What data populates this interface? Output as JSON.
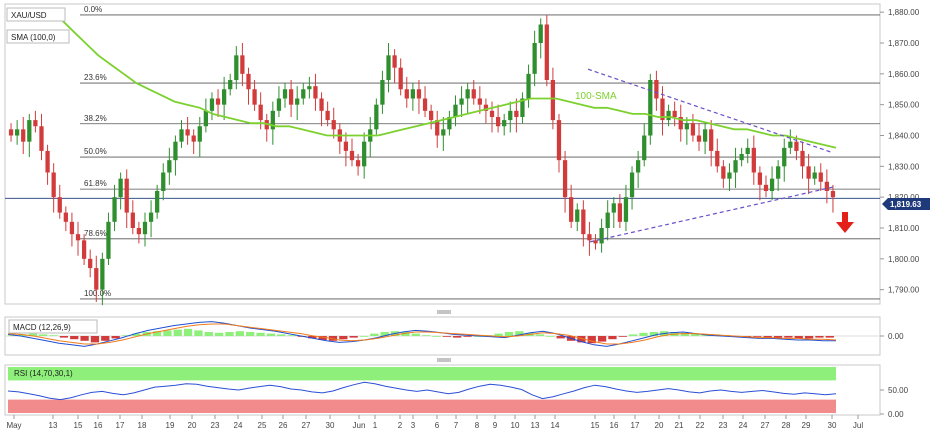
{
  "symbol": "XAU/USD",
  "sma_label": "SMA (100,0)",
  "sma_annotation": "100-SMA",
  "macd_label": "MACD (12,26,9)",
  "rsi_label": "RSI (14,70,30,1)",
  "last_price": "1,819.63",
  "colors": {
    "up": "#2f8f2f",
    "down": "#d23b3b",
    "sma": "#7cd12e",
    "trendline": "#6a4fc7",
    "macd_line": "#1f4fd1",
    "signal_line": "#f07a1b",
    "rsi_line": "#2b4fd6",
    "overbought_band": "#8ef07a",
    "oversold_band": "#f28b8b",
    "price_tag": "#1e3a7a",
    "arrow": "#e32119"
  },
  "chart_data": [
    {
      "type": "candlestick",
      "title": "XAU/USD",
      "ylim": [
        1786,
        1882
      ],
      "y_ticks": [
        "1,880.00",
        "1,870.00",
        "1,860.00",
        "1,850.00",
        "1,840.00",
        "1,830.00",
        "1,820.00",
        "1,810.00",
        "1,800.00",
        "1,790.00"
      ],
      "y_tick_values": [
        1880,
        1870,
        1860,
        1850,
        1840,
        1830,
        1820,
        1810,
        1800,
        1790
      ],
      "x_ticks": [
        "May",
        "13",
        "15",
        "16",
        "17",
        "18",
        "19",
        "20",
        "23",
        "24",
        "25",
        "26",
        "27",
        "30",
        "Jun",
        "1",
        "2",
        "3",
        "6",
        "7",
        "8",
        "9",
        "10",
        "13",
        "14",
        "15",
        "16",
        "17",
        "20",
        "21",
        "22",
        "23",
        "24",
        "27",
        "28",
        "29",
        "30",
        "Jul"
      ],
      "fibonacci_levels": [
        {
          "label": "0.0%",
          "value": 1879.1
        },
        {
          "label": "23.6%",
          "value": 1857.0
        },
        {
          "label": "38.2%",
          "value": 1843.8
        },
        {
          "label": "50.0%",
          "value": 1833.0
        },
        {
          "label": "61.8%",
          "value": 1822.6
        },
        {
          "label": "78.6%",
          "value": 1806.5
        },
        {
          "label": "100.0%",
          "value": 1787.0
        }
      ],
      "last_price": 1819.63,
      "close_series": [
        1840,
        1842,
        1838,
        1845,
        1843,
        1835,
        1828,
        1820,
        1815,
        1812,
        1808,
        1806,
        1800,
        1797,
        1790,
        1800,
        1812,
        1820,
        1826,
        1815,
        1810,
        1808,
        1812,
        1815,
        1822,
        1828,
        1832,
        1838,
        1842,
        1840,
        1838,
        1843,
        1848,
        1852,
        1850,
        1855,
        1858,
        1866,
        1860,
        1855,
        1850,
        1845,
        1842,
        1848,
        1852,
        1855,
        1850,
        1852,
        1855,
        1856,
        1852,
        1848,
        1845,
        1842,
        1838,
        1835,
        1832,
        1830,
        1838,
        1842,
        1850,
        1858,
        1866,
        1862,
        1855,
        1852,
        1855,
        1852,
        1848,
        1845,
        1840,
        1842,
        1846,
        1850,
        1852,
        1855,
        1852,
        1850,
        1848,
        1846,
        1843,
        1845,
        1848,
        1846,
        1852,
        1860,
        1870,
        1876,
        1858,
        1845,
        1832,
        1820,
        1812,
        1816,
        1808,
        1806,
        1805,
        1810,
        1815,
        1818,
        1812,
        1820,
        1828,
        1832,
        1840,
        1858,
        1852,
        1845,
        1848,
        1846,
        1842,
        1844,
        1840,
        1838,
        1842,
        1835,
        1830,
        1826,
        1828,
        1832,
        1834,
        1836,
        1828,
        1824,
        1822,
        1826,
        1830,
        1836,
        1838,
        1835,
        1830,
        1826,
        1828,
        1825,
        1822,
        1820
      ],
      "sma_series": [
        1878,
        1874,
        1870,
        1866,
        1863,
        1860,
        1857,
        1855,
        1853,
        1851,
        1850,
        1849,
        1847,
        1846,
        1845,
        1844,
        1844,
        1843,
        1843,
        1842,
        1841,
        1840,
        1840,
        1840,
        1840,
        1840,
        1841,
        1842,
        1843,
        1844,
        1845,
        1846,
        1847,
        1848,
        1849,
        1850,
        1851,
        1852,
        1852,
        1852,
        1851,
        1850,
        1849,
        1849,
        1848,
        1847,
        1847,
        1846,
        1846,
        1845,
        1845,
        1844,
        1843,
        1842,
        1842,
        1841,
        1840,
        1840,
        1839,
        1838,
        1837,
        1836
      ],
      "resistance_line": {
        "from": [
          1861.5,
          "2022-06-13"
        ],
        "to": [
          1834.5,
          "2022-06-29"
        ]
      },
      "support_line": {
        "from": [
          1805.5,
          "2022-06-14"
        ],
        "to": [
          1823.5,
          "2022-06-29"
        ]
      }
    },
    {
      "type": "bar",
      "title": "MACD (12,26,9)",
      "y_ticks": [
        "0.00"
      ],
      "y_tick_values": [
        0
      ],
      "histogram": [
        0.1,
        0.2,
        0.3,
        0.2,
        0.1,
        -0.2,
        -0.4,
        -0.6,
        -0.8,
        -0.6,
        -0.3,
        0.1,
        0.3,
        0.5,
        0.6,
        0.7,
        0.8,
        0.9,
        0.7,
        0.5,
        0.4,
        0.5,
        0.6,
        0.5,
        0.4,
        0.3,
        0.2,
        0.1,
        -0.1,
        -0.3,
        -0.5,
        -0.6,
        -0.4,
        -0.2,
        0.0,
        0.3,
        0.5,
        0.6,
        0.5,
        0.3,
        0.1,
        0.0,
        -0.1,
        -0.2,
        -0.1,
        0.0,
        0.1,
        0.3,
        0.5,
        0.6,
        0.4,
        0.2,
        0.0,
        -0.3,
        -0.6,
        -0.8,
        -0.9,
        -0.7,
        -0.4,
        -0.1,
        0.2,
        0.4,
        0.5,
        0.6,
        0.5,
        0.4,
        0.3,
        0.2,
        0.2,
        0.1,
        0.0,
        -0.1,
        -0.1,
        -0.2,
        -0.2,
        -0.2,
        -0.3,
        -0.3,
        -0.2,
        -0.2
      ],
      "macd_line": [
        0.2,
        0.0,
        -0.3,
        -0.6,
        -0.9,
        -1.1,
        -1.3,
        -1.0,
        -0.6,
        -0.2,
        0.3,
        0.7,
        1.0,
        1.3,
        1.5,
        1.7,
        1.8,
        1.6,
        1.3,
        1.0,
        0.8,
        0.6,
        0.3,
        0.0,
        -0.3,
        -0.6,
        -0.8,
        -0.7,
        -0.5,
        -0.2,
        0.2,
        0.5,
        0.7,
        0.6,
        0.4,
        0.2,
        0.1,
        0.0,
        -0.1,
        -0.2,
        0.1,
        0.4,
        0.6,
        0.3,
        -0.2,
        -0.7,
        -1.1,
        -1.3,
        -1.0,
        -0.6,
        -0.2,
        0.2,
        0.4,
        0.5,
        0.3,
        0.1,
        0.0,
        -0.1,
        -0.2,
        -0.3,
        -0.3,
        -0.4,
        -0.5,
        -0.5,
        -0.6,
        -0.6
      ],
      "signal_line": [
        0.3,
        0.2,
        0.0,
        -0.3,
        -0.6,
        -0.8,
        -1.0,
        -1.0,
        -0.8,
        -0.5,
        -0.1,
        0.3,
        0.6,
        0.9,
        1.2,
        1.4,
        1.5,
        1.5,
        1.3,
        1.1,
        0.9,
        0.7,
        0.5,
        0.3,
        0.0,
        -0.2,
        -0.5,
        -0.6,
        -0.5,
        -0.3,
        0.0,
        0.3,
        0.5,
        0.5,
        0.4,
        0.3,
        0.2,
        0.1,
        0.0,
        -0.1,
        0.0,
        0.2,
        0.4,
        0.3,
        0.1,
        -0.3,
        -0.7,
        -1.0,
        -1.0,
        -0.8,
        -0.5,
        -0.1,
        0.2,
        0.3,
        0.3,
        0.2,
        0.1,
        0.0,
        -0.1,
        -0.2,
        -0.2,
        -0.3,
        -0.3,
        -0.4,
        -0.4,
        -0.5
      ]
    },
    {
      "type": "line",
      "title": "RSI (14,70,30,1)",
      "y_ticks": [
        "50.00",
        "0.00"
      ],
      "y_tick_values": [
        50,
        0
      ],
      "ylim": [
        0,
        100
      ],
      "overbought": 70,
      "oversold": 30,
      "rsi": [
        48,
        46,
        42,
        38,
        33,
        30,
        34,
        40,
        45,
        47,
        43,
        40,
        44,
        50,
        56,
        58,
        60,
        63,
        62,
        58,
        55,
        52,
        50,
        54,
        57,
        60,
        57,
        52,
        50,
        46,
        44,
        48,
        55,
        61,
        66,
        63,
        58,
        54,
        50,
        47,
        50,
        46,
        42,
        45,
        52,
        58,
        62,
        60,
        56,
        51,
        40,
        32,
        36,
        42,
        48,
        55,
        60,
        57,
        52,
        48,
        45,
        47,
        50,
        53,
        50,
        46,
        44,
        48,
        50,
        47,
        45,
        47,
        49,
        46,
        43,
        41,
        44,
        42,
        40,
        42
      ]
    }
  ]
}
